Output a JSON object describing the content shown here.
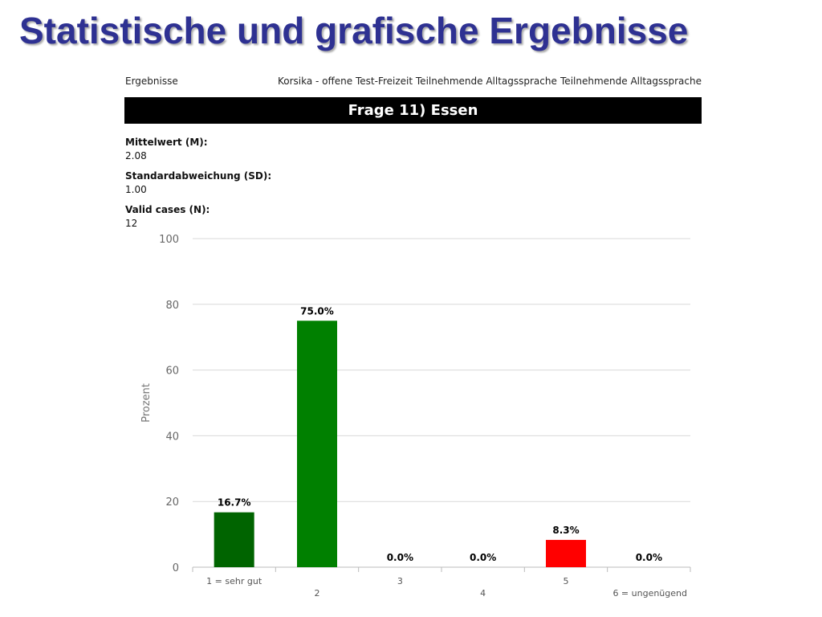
{
  "slide_title": "Statistische und grafische Ergebnisse",
  "header": {
    "left": "Ergebnisse",
    "middle": "Korsika - offene Test-Freizeit Teilnehmende Alltagssprache",
    "right": "Teilnehmende Alltagssprache"
  },
  "question": "Frage 11) Essen",
  "stats": {
    "mean_label": "Mittelwert (M):",
    "mean_value": "2.08",
    "sd_label": "Standardabweichung (SD):",
    "sd_value": "1.00",
    "n_label": "Valid cases (N):",
    "n_value": "12"
  },
  "chart_data": {
    "type": "bar",
    "categories": [
      "1 = sehr gut",
      "2",
      "3",
      "4",
      "5",
      "6 = ungenügend"
    ],
    "values": [
      16.7,
      75.0,
      0.0,
      0.0,
      8.3,
      0.0
    ],
    "data_labels": [
      "16.7%",
      "75.0%",
      "0.0%",
      "0.0%",
      "8.3%",
      "0.0%"
    ],
    "bar_colors": [
      "#006400",
      "#008000",
      "#7cb342",
      "#ffa500",
      "#ff0000",
      "#8b0000"
    ],
    "ylabel": "Prozent",
    "ylim": [
      0,
      100
    ],
    "yticks": [
      0,
      20,
      40,
      60,
      80,
      100
    ],
    "grid": true
  }
}
